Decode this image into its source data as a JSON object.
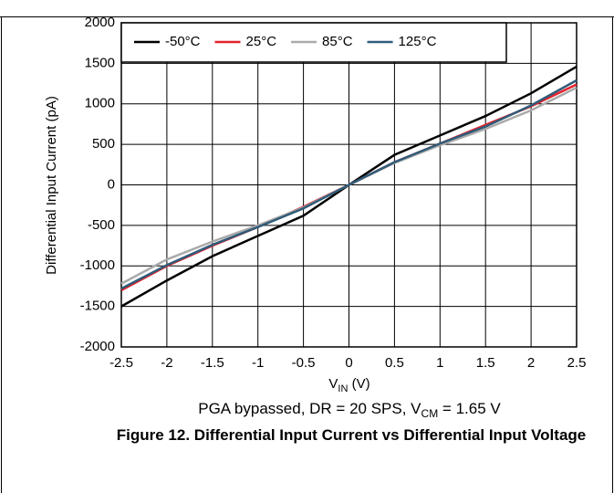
{
  "chart_data": {
    "type": "line",
    "x_label": [
      "V",
      "IN",
      " (V)"
    ],
    "y_label": "Differential Input Current (pA)",
    "annotation": [
      "PGA bypassed, DR = 20 SPS, V",
      "CM",
      " = 1.65 V"
    ],
    "caption": "Figure 12. Differential Input Current vs Differential Input Voltage",
    "x": [
      -2.5,
      -2,
      -1.5,
      -1,
      -0.5,
      0,
      0.5,
      1,
      1.5,
      2,
      2.5
    ],
    "series": [
      {
        "name": "-50°C",
        "color": "#000000",
        "values": [
          -1500,
          -1180,
          -880,
          -630,
          -380,
          0,
          370,
          610,
          850,
          1130,
          1460
        ]
      },
      {
        "name": "25°C",
        "color": "#e3222b",
        "values": [
          -1300,
          -1000,
          -750,
          -520,
          -270,
          0,
          280,
          510,
          740,
          970,
          1240
        ]
      },
      {
        "name": "85°C",
        "color": "#aaaaaa",
        "values": [
          -1220,
          -920,
          -700,
          -500,
          -280,
          0,
          270,
          490,
          690,
          920,
          1200
        ]
      },
      {
        "name": "125°C",
        "color": "#2f5b78",
        "values": [
          -1280,
          -990,
          -740,
          -520,
          -290,
          0,
          280,
          510,
          720,
          980,
          1290
        ]
      }
    ],
    "xlim": [
      -2.5,
      2.5
    ],
    "ylim": [
      -2000,
      2000
    ],
    "xticks": [
      -2.5,
      -2,
      -1.5,
      -1,
      -0.5,
      0,
      0.5,
      1,
      1.5,
      2,
      2.5
    ],
    "yticks": [
      -2000,
      -1500,
      -1000,
      -500,
      0,
      500,
      1000,
      1500,
      2000
    ],
    "grid": true,
    "legend": "top-left"
  }
}
